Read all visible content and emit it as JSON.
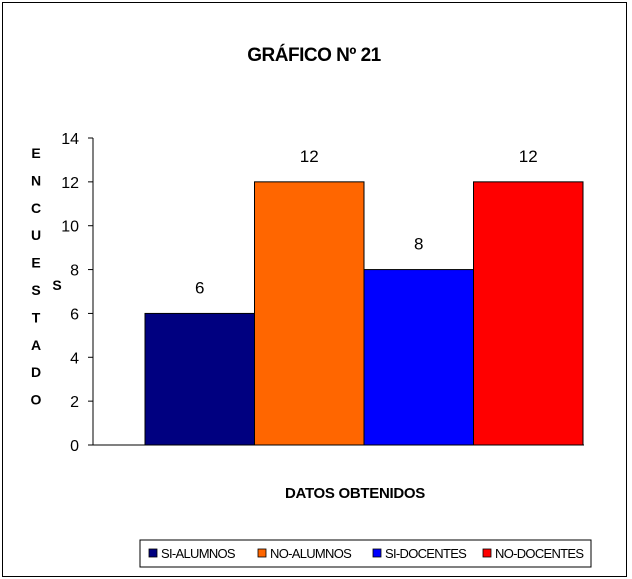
{
  "chart_data": {
    "type": "bar",
    "title": "GRÁFICO Nº 21",
    "xlabel": "DATOS OBTENIDOS",
    "ylabel": "ENCUESTADOS",
    "ylabel_letters": [
      "E",
      "N",
      "C",
      "U",
      "E",
      "S",
      "T",
      "A",
      "D",
      "O"
    ],
    "ylabel_s": "S",
    "ylim": [
      0,
      14
    ],
    "yticks": [
      "0",
      "2",
      "4",
      "6",
      "8",
      "10",
      "12",
      "14"
    ],
    "grid": false,
    "legend_position": "bottom",
    "series": [
      {
        "name": "SI-ALUMNOS",
        "value": 6,
        "label": "6",
        "color": "#000080"
      },
      {
        "name": "NO-ALUMNOS",
        "value": 12,
        "label": "12",
        "color": "#FF6600"
      },
      {
        "name": "SI-DOCENTES",
        "value": 8,
        "label": "8",
        "color": "#0000FF"
      },
      {
        "name": "NO-DOCENTES",
        "value": 12,
        "label": "12",
        "color": "#FF0000"
      }
    ]
  }
}
